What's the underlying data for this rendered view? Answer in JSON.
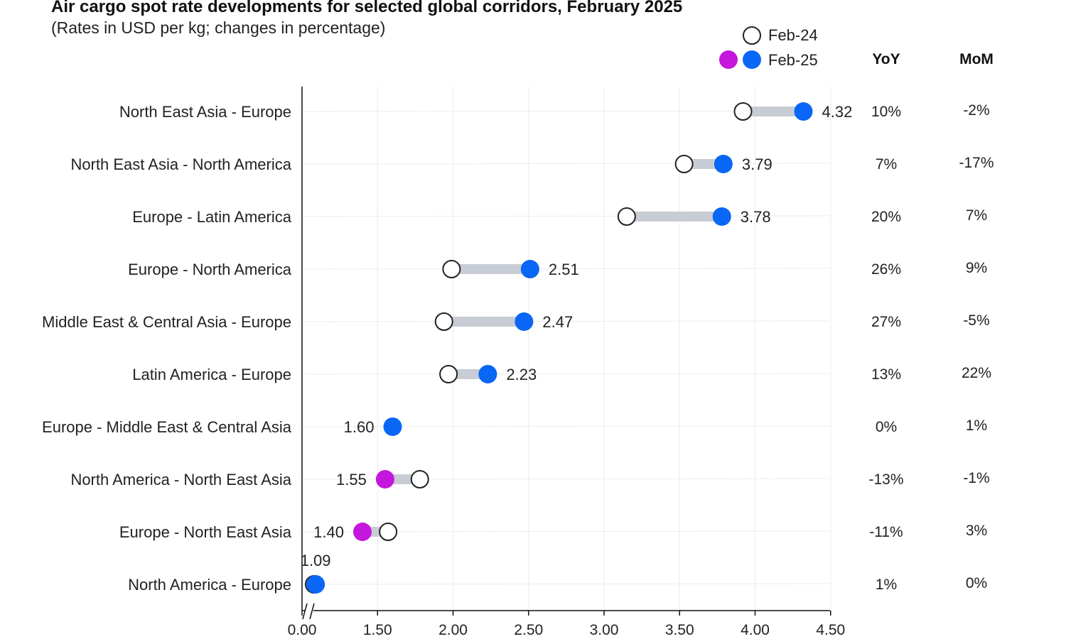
{
  "header": {
    "title": "Air cargo spot rate developments for selected global corridors, February 2025",
    "subtitle": "(Rates in USD per kg; changes in percentage)"
  },
  "legend": {
    "feb24_label": "Feb-24",
    "feb25_label": "Feb-25",
    "placement": "top-right"
  },
  "columns": {
    "yoy": "YoY",
    "mom": "MoM"
  },
  "colors": {
    "increase": "#0a66f5",
    "decrease": "#c516dd",
    "connector": "#c8ccd4",
    "feb24_fill": "#ffffff"
  },
  "chart_data": {
    "type": "dumbbell",
    "title": "Air cargo spot rate developments for selected global corridors, February 2025",
    "subtitle": "(Rates in USD per kg; changes in percentage)",
    "xlabel": "",
    "ylabel": "",
    "xlim": [
      0,
      4.5
    ],
    "x_axis_break": true,
    "x_ticks": [
      "0.00",
      "1.50",
      "2.00",
      "2.50",
      "3.00",
      "3.50",
      "4.00",
      "4.50"
    ],
    "grid": true,
    "legend_placement": "top-right",
    "rows": [
      {
        "corridor": "North East Asia - Europe",
        "feb24": 3.92,
        "feb25": 4.32,
        "label": "4.32",
        "yoy": "10%",
        "mom": "-2%"
      },
      {
        "corridor": "North East Asia - North America",
        "feb24": 3.53,
        "feb25": 3.79,
        "label": "3.79",
        "yoy": "7%",
        "mom": "-17%"
      },
      {
        "corridor": "Europe - Latin America",
        "feb24": 3.15,
        "feb25": 3.78,
        "label": "3.78",
        "yoy": "20%",
        "mom": "7%"
      },
      {
        "corridor": "Europe - North America",
        "feb24": 1.99,
        "feb25": 2.51,
        "label": "2.51",
        "yoy": "26%",
        "mom": "9%"
      },
      {
        "corridor": "Middle East & Central Asia - Europe",
        "feb24": 1.94,
        "feb25": 2.47,
        "label": "2.47",
        "yoy": "27%",
        "mom": "-5%"
      },
      {
        "corridor": "Latin America - Europe",
        "feb24": 1.97,
        "feb25": 2.23,
        "label": "2.23",
        "yoy": "13%",
        "mom": "22%"
      },
      {
        "corridor": "Europe - Middle East & Central Asia",
        "feb24": 1.6,
        "feb25": 1.6,
        "label": "1.60",
        "yoy": "0%",
        "mom": "1%"
      },
      {
        "corridor": "North America - North East Asia",
        "feb24": 1.78,
        "feb25": 1.55,
        "label": "1.55",
        "yoy": "-13%",
        "mom": "-1%"
      },
      {
        "corridor": "Europe - North East Asia",
        "feb24": 1.57,
        "feb25": 1.4,
        "label": "1.40",
        "yoy": "-11%",
        "mom": "3%"
      },
      {
        "corridor": "North America - Europe",
        "feb24": 1.08,
        "feb25": 1.09,
        "label": "1.09",
        "yoy": "1%",
        "mom": "0%"
      }
    ]
  }
}
